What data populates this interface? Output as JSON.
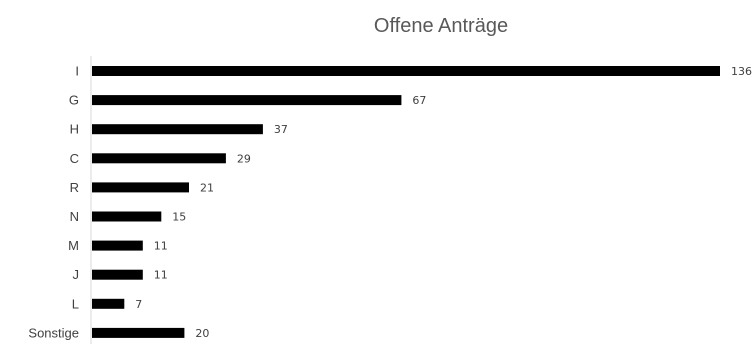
{
  "chart_data": {
    "type": "bar",
    "orientation": "horizontal",
    "title": "Offene Anträge",
    "categories": [
      "I",
      "G",
      "H",
      "C",
      "R",
      "N",
      "M",
      "J",
      "L",
      "Sonstige"
    ],
    "values": [
      136,
      67,
      37,
      29,
      21,
      15,
      11,
      11,
      7,
      20
    ],
    "xlim": [
      0,
      136
    ],
    "grid": false,
    "legend": "none",
    "data_labels": true,
    "colors": {
      "bar": "#000000",
      "axis": "#d9d9d9",
      "title": "#595959",
      "text": "#404040"
    }
  }
}
